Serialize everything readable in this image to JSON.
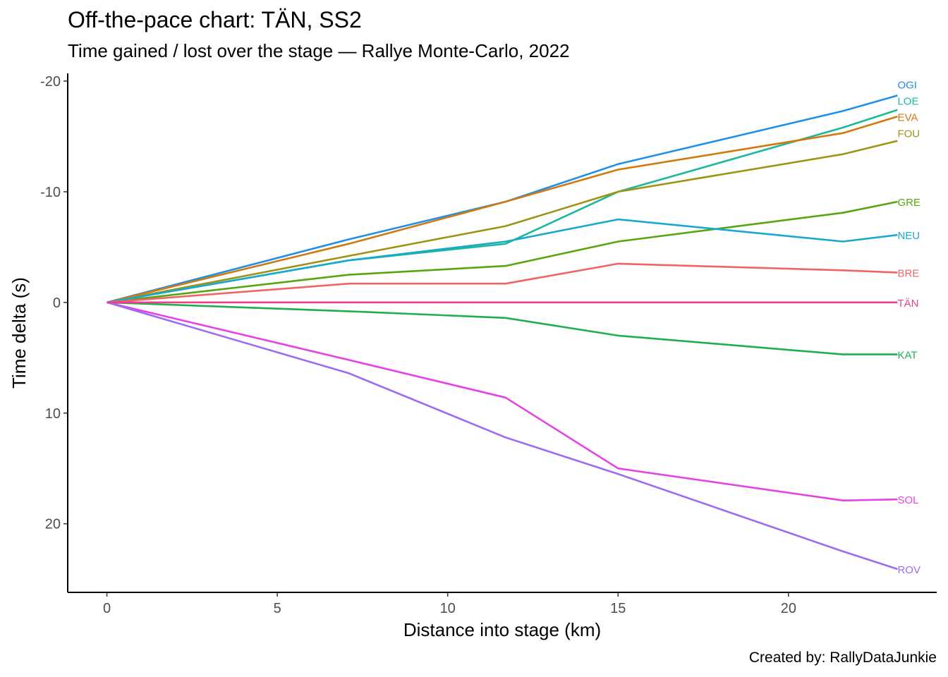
{
  "chart_data": {
    "type": "line",
    "title": "Off-the-pace chart: TÄN, SS2",
    "subtitle": "Time gained / lost over the stage — Rallye Monte-Carlo, 2022",
    "caption": "Created by: RallyDataJunkie",
    "xlabel": "Distance into stage (km)",
    "ylabel": "Time delta (s)",
    "xlim": [
      -1.15,
      24.35
    ],
    "ylim": [
      -20.7,
      26.2
    ],
    "y_reversed": true,
    "grid": false,
    "legend": "none",
    "xticks": [
      0,
      5,
      10,
      15,
      20
    ],
    "xtick_labels": [
      "0",
      "5",
      "10",
      "15",
      "20"
    ],
    "yticks": [
      -20,
      -10,
      0,
      10,
      20
    ],
    "ytick_labels": [
      "-20",
      "-10",
      "0",
      "10",
      "20"
    ],
    "x": [
      0,
      7.1,
      11.7,
      15.0,
      21.6,
      23.2
    ],
    "series": [
      {
        "name": "OGI",
        "color": "#1F8FE8",
        "values": [
          0,
          -5.7,
          -9.1,
          -12.5,
          -17.3,
          -18.7
        ]
      },
      {
        "name": "LOE",
        "color": "#1BB99A",
        "values": [
          0,
          -3.8,
          -5.3,
          -10.0,
          -15.8,
          -17.4
        ]
      },
      {
        "name": "EVA",
        "color": "#CF7A10",
        "values": [
          0,
          -5.3,
          -9.1,
          -12.0,
          -15.3,
          -16.8
        ]
      },
      {
        "name": "FOU",
        "color": "#9E9313",
        "values": [
          0,
          -4.2,
          -6.9,
          -10.0,
          -13.4,
          -14.6
        ]
      },
      {
        "name": "GRE",
        "color": "#56A70F",
        "values": [
          0,
          -2.5,
          -3.3,
          -5.5,
          -8.1,
          -9.1
        ]
      },
      {
        "name": "NEU",
        "color": "#17AACE",
        "values": [
          0,
          -3.8,
          -5.5,
          -7.5,
          -5.5,
          -6.1
        ]
      },
      {
        "name": "BRE",
        "color": "#EF6567",
        "values": [
          0,
          -1.7,
          -1.7,
          -3.5,
          -2.9,
          -2.7
        ]
      },
      {
        "name": "TÄN",
        "color": "#EF3E8D",
        "values": [
          0,
          0,
          0,
          0,
          0,
          0
        ]
      },
      {
        "name": "KAT",
        "color": "#1EB04E",
        "values": [
          0,
          0.8,
          1.4,
          3.0,
          4.7,
          4.7
        ]
      },
      {
        "name": "SOL",
        "color": "#E543E5",
        "values": [
          0,
          5.2,
          8.6,
          15.0,
          17.9,
          17.8
        ]
      },
      {
        "name": "ROV",
        "color": "#9D6BF4",
        "values": [
          0,
          6.4,
          12.2,
          15.5,
          22.5,
          24.1
        ]
      }
    ]
  }
}
